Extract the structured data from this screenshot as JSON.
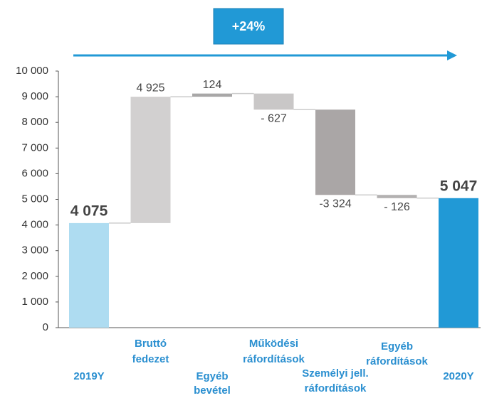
{
  "chart_data": {
    "type": "waterfall",
    "annotation": "+24%",
    "categories": [
      [
        "2019Y"
      ],
      [
        "Bruttó",
        "fedezet"
      ],
      [
        "Egyéb",
        "bevétel"
      ],
      [
        "Működési",
        "ráfordítások"
      ],
      [
        "Személyi jell.",
        "ráfordítások"
      ],
      [
        "Egyéb",
        "ráfordítások"
      ],
      [
        "2020Y"
      ]
    ],
    "values": [
      4075,
      4925,
      124,
      -627,
      -3324,
      -126,
      5047
    ],
    "value_labels": [
      "4 075",
      "4 925",
      "124",
      "- 627",
      "-3 324",
      "- 126",
      "5 047"
    ],
    "totals": [
      true,
      false,
      false,
      false,
      false,
      false,
      true
    ],
    "colors": [
      "#aedcf1",
      "#d2d0d0",
      "#a8a7a7",
      "#c9c7c7",
      "#aaa6a6",
      "#b3b1b1",
      "#2199d6"
    ],
    "ylim": [
      0,
      10000
    ],
    "yticks": [
      0,
      {
        "value": 1000,
        "label": "1 000"
      },
      {
        "value": 2000,
        "label": "2 000"
      },
      {
        "value": 3000,
        "label": "3 000"
      },
      {
        "value": 4000,
        "label": "4 000"
      },
      {
        "value": 5000,
        "label": "5 000"
      },
      {
        "value": 6000,
        "label": "6 000"
      },
      {
        "value": 7000,
        "label": "7 000"
      },
      {
        "value": 8000,
        "label": "8 000"
      },
      {
        "value": 9000,
        "label": "9 000"
      },
      {
        "value": 10000,
        "label": "10 000"
      }
    ],
    "grid": false
  }
}
